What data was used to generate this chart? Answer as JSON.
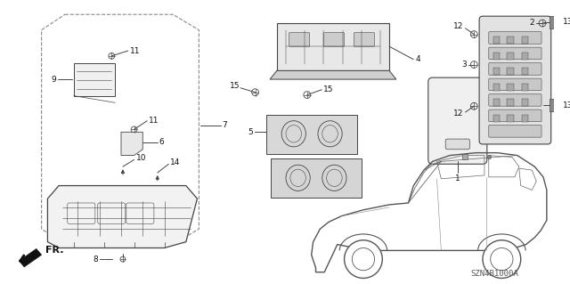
{
  "bg_color": "#ffffff",
  "diagram_code": "SZN4B1000A",
  "line_color": "#444444",
  "text_color": "#111111",
  "font_size": 6.5,
  "fig_w": 6.4,
  "fig_h": 3.19,
  "dpi": 100
}
